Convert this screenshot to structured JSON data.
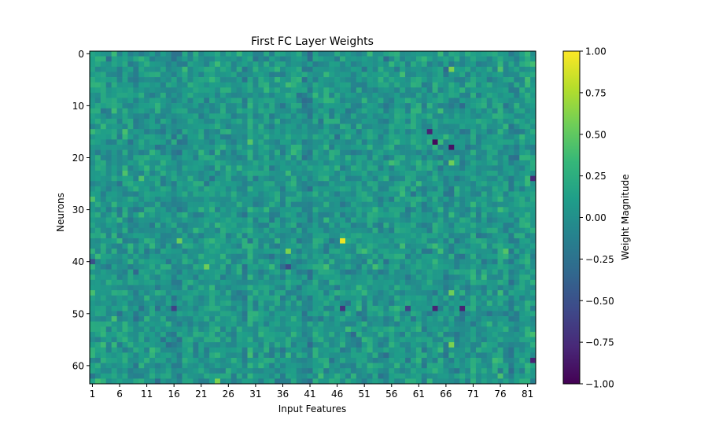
{
  "chart_data": {
    "type": "heatmap",
    "title": "First FC Layer Weights",
    "xlabel": "Input Features",
    "ylabel": "Neurons",
    "colorbar_label": "Weight Magnitude",
    "colormap": "viridis",
    "colormap_stops": [
      "#440154",
      "#482878",
      "#3e4989",
      "#31688e",
      "#26828e",
      "#1f9e89",
      "#35b779",
      "#6ece58",
      "#b5de2b",
      "#fde725"
    ],
    "n_cols": 82,
    "n_rows": 64,
    "xlim": [
      1,
      82
    ],
    "ylim": [
      0,
      63
    ],
    "x_ticks": [
      1,
      6,
      11,
      16,
      21,
      26,
      31,
      36,
      41,
      46,
      51,
      56,
      61,
      66,
      71,
      76,
      81
    ],
    "x_tick_labels": [
      "1",
      "6",
      "11",
      "16",
      "21",
      "26",
      "31",
      "36",
      "41",
      "46",
      "51",
      "56",
      "61",
      "66",
      "71",
      "76",
      "81"
    ],
    "y_ticks": [
      0,
      10,
      20,
      30,
      40,
      50,
      60
    ],
    "y_tick_labels": [
      "0",
      "10",
      "20",
      "30",
      "40",
      "50",
      "60"
    ],
    "vmin": -1.0,
    "vmax": 1.0,
    "colorbar_ticks": [
      1.0,
      0.75,
      0.5,
      0.25,
      0.0,
      -0.25,
      -0.5,
      -0.75,
      -1.0
    ],
    "colorbar_tick_labels": [
      "1.00",
      "0.75",
      "0.50",
      "0.25",
      "0.00",
      "−0.25",
      "−0.50",
      "−0.75",
      "−1.00"
    ],
    "notable_cells": [
      {
        "col": 47,
        "row": 36,
        "value": 0.95
      },
      {
        "col": 67,
        "row": 3,
        "value": 0.6
      },
      {
        "col": 67,
        "row": 56,
        "value": 0.6
      },
      {
        "col": 37,
        "row": 38,
        "value": 0.6
      },
      {
        "col": 67,
        "row": 21,
        "value": 0.55
      },
      {
        "col": 67,
        "row": 46,
        "value": 0.55
      },
      {
        "col": 17,
        "row": 36,
        "value": 0.55
      },
      {
        "col": 22,
        "row": 41,
        "value": 0.55
      },
      {
        "col": 24,
        "row": 63,
        "value": 0.6
      },
      {
        "col": 64,
        "row": 17,
        "value": -0.95
      },
      {
        "col": 67,
        "row": 18,
        "value": -0.9
      },
      {
        "col": 63,
        "row": 15,
        "value": -0.8
      },
      {
        "col": 69,
        "row": 49,
        "value": -0.8
      },
      {
        "col": 64,
        "row": 49,
        "value": -0.8
      },
      {
        "col": 82,
        "row": 59,
        "value": -0.8
      },
      {
        "col": 82,
        "row": 24,
        "value": -0.75
      },
      {
        "col": 47,
        "row": 49,
        "value": -0.7
      },
      {
        "col": 59,
        "row": 49,
        "value": -0.6
      },
      {
        "col": 16,
        "row": 49,
        "value": -0.6
      },
      {
        "col": 37,
        "row": 41,
        "value": -0.55
      },
      {
        "col": 1,
        "row": 40,
        "value": -0.5
      }
    ]
  }
}
